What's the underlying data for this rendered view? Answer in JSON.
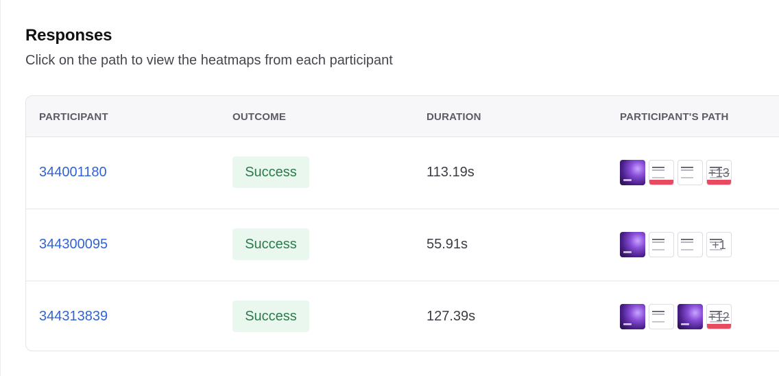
{
  "header": {
    "title": "Responses",
    "subtitle": "Click on the path to view the heatmaps from each participant"
  },
  "table": {
    "columns": [
      "PARTICIPANT",
      "OUTCOME",
      "DURATION",
      "PARTICIPANT'S PATH"
    ],
    "rows": [
      {
        "participant": "344001180",
        "outcome": "Success",
        "duration": "113.19s",
        "path_thumbs": [
          "purple-screen",
          "white-screen-red-bar",
          "white-screen"
        ],
        "more": "+13"
      },
      {
        "participant": "344300095",
        "outcome": "Success",
        "duration": "55.91s",
        "path_thumbs": [
          "purple-screen",
          "white-screen",
          "white-screen"
        ],
        "more": "+1"
      },
      {
        "participant": "344313839",
        "outcome": "Success",
        "duration": "127.39s",
        "path_thumbs": [
          "purple-screen",
          "white-screen",
          "purple-screen"
        ],
        "more": "+12"
      }
    ]
  },
  "colors": {
    "link": "#2f63d6",
    "success_bg": "#eaf7ef",
    "success_text": "#2b7a4b",
    "header_bg": "#f7f7f9"
  }
}
